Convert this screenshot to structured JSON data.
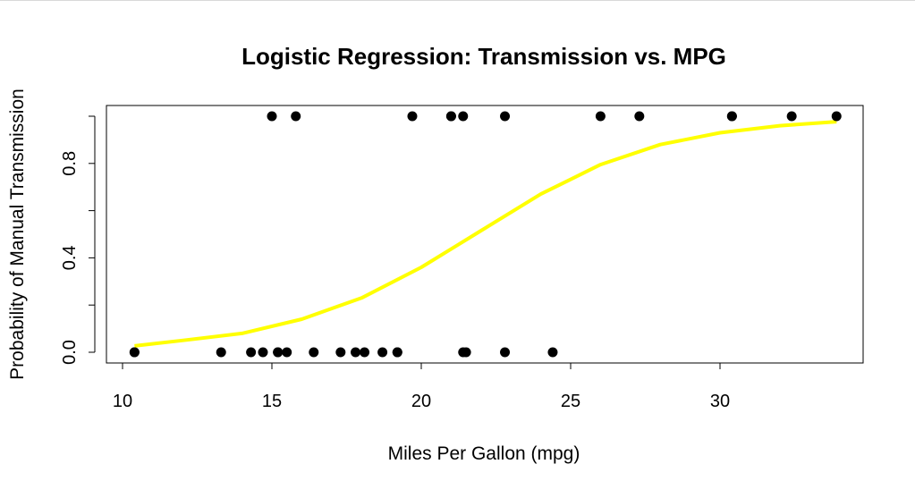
{
  "chart_data": {
    "type": "scatter",
    "title": "Logistic Regression: Transmission vs. MPG",
    "xlabel": "Miles Per Gallon (mpg)",
    "ylabel": "Probability of Manual Transmission",
    "xlim": [
      10,
      34
    ],
    "ylim": [
      0,
      1
    ],
    "x_ticks": [
      10,
      15,
      20,
      25,
      30
    ],
    "y_ticks": [
      0,
      0.2,
      0.4,
      0.6,
      0.8,
      1.0
    ],
    "y_tick_labels": [
      "0.0",
      "",
      "0.4",
      "",
      "0.8",
      ""
    ],
    "grid": false,
    "points": {
      "color": "#000000",
      "x": [
        21.0,
        21.0,
        22.8,
        21.4,
        18.7,
        18.1,
        14.3,
        24.4,
        22.8,
        19.2,
        17.8,
        16.4,
        17.3,
        15.2,
        10.4,
        10.4,
        14.7,
        32.4,
        30.4,
        33.9,
        21.5,
        15.5,
        15.2,
        13.3,
        19.2,
        27.3,
        26.0,
        30.4,
        15.8,
        19.7,
        15.0,
        21.4
      ],
      "y": [
        1,
        1,
        1,
        0,
        0,
        0,
        0,
        0,
        0,
        0,
        0,
        0,
        0,
        0,
        0,
        0,
        0,
        1,
        1,
        1,
        0,
        0,
        0,
        0,
        0,
        1,
        1,
        1,
        1,
        1,
        1,
        1
      ]
    },
    "fitted_curve": {
      "color": "#ffff00",
      "x": [
        10.4,
        12,
        14,
        16,
        18,
        20,
        22,
        24,
        26,
        28,
        30,
        32,
        33.9
      ],
      "y": [
        0.027,
        0.05,
        0.08,
        0.14,
        0.23,
        0.36,
        0.515,
        0.67,
        0.795,
        0.88,
        0.93,
        0.96,
        0.977
      ]
    }
  }
}
